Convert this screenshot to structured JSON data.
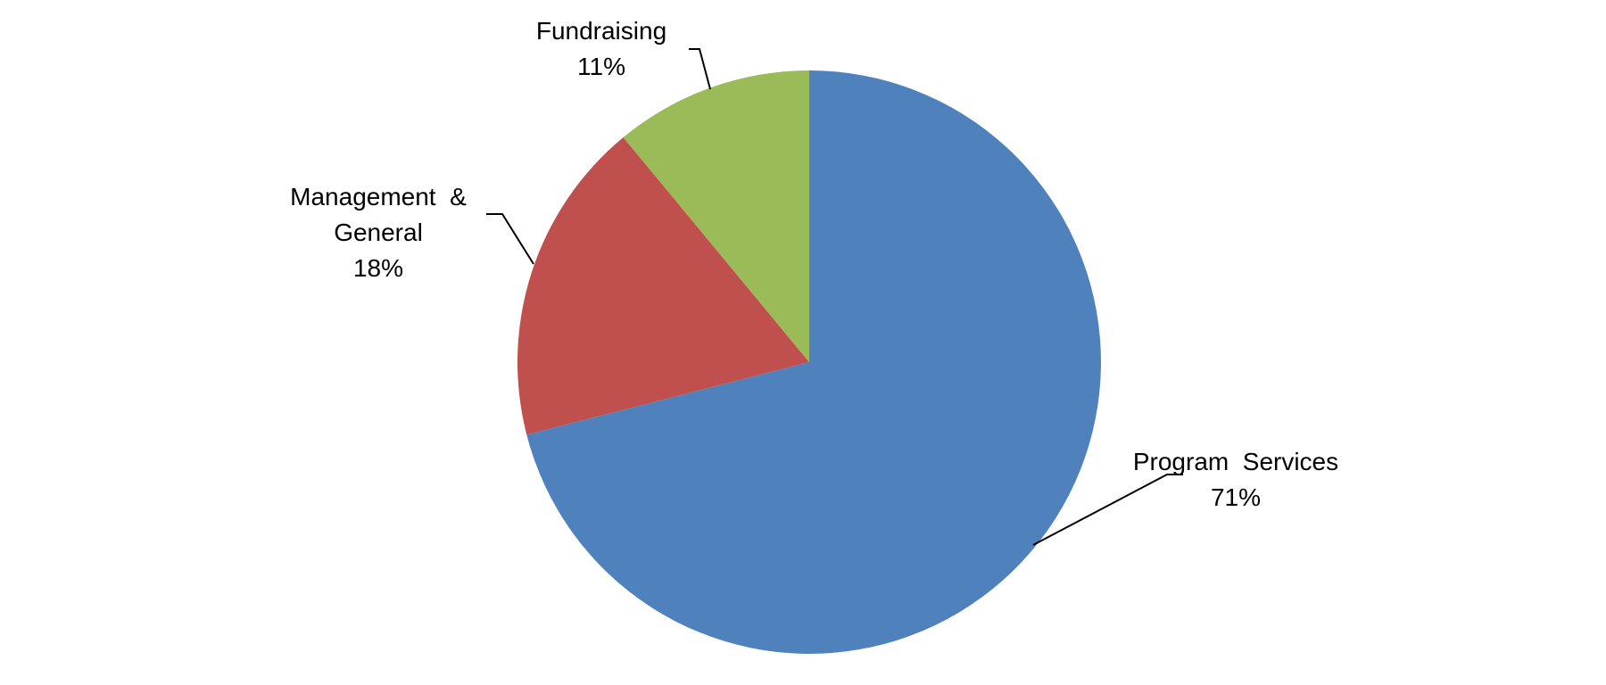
{
  "chart_data": {
    "type": "pie",
    "title": "",
    "start_angle_deg": 0,
    "direction": "clockwise",
    "slices": [
      {
        "key": "program-services",
        "label_lines": [
          "Program  Services"
        ],
        "value": 71,
        "value_label": "71%",
        "color": "#4F81BD"
      },
      {
        "key": "management-general",
        "label_lines": [
          "Management  &",
          "General"
        ],
        "value": 18,
        "value_label": "18%",
        "color": "#C0504D"
      },
      {
        "key": "fundraising",
        "label_lines": [
          "Fundraising"
        ],
        "value": 11,
        "value_label": "11%",
        "color": "#9BBB59"
      }
    ],
    "legend": "none",
    "data_labels": "outside-with-leader-lines"
  }
}
